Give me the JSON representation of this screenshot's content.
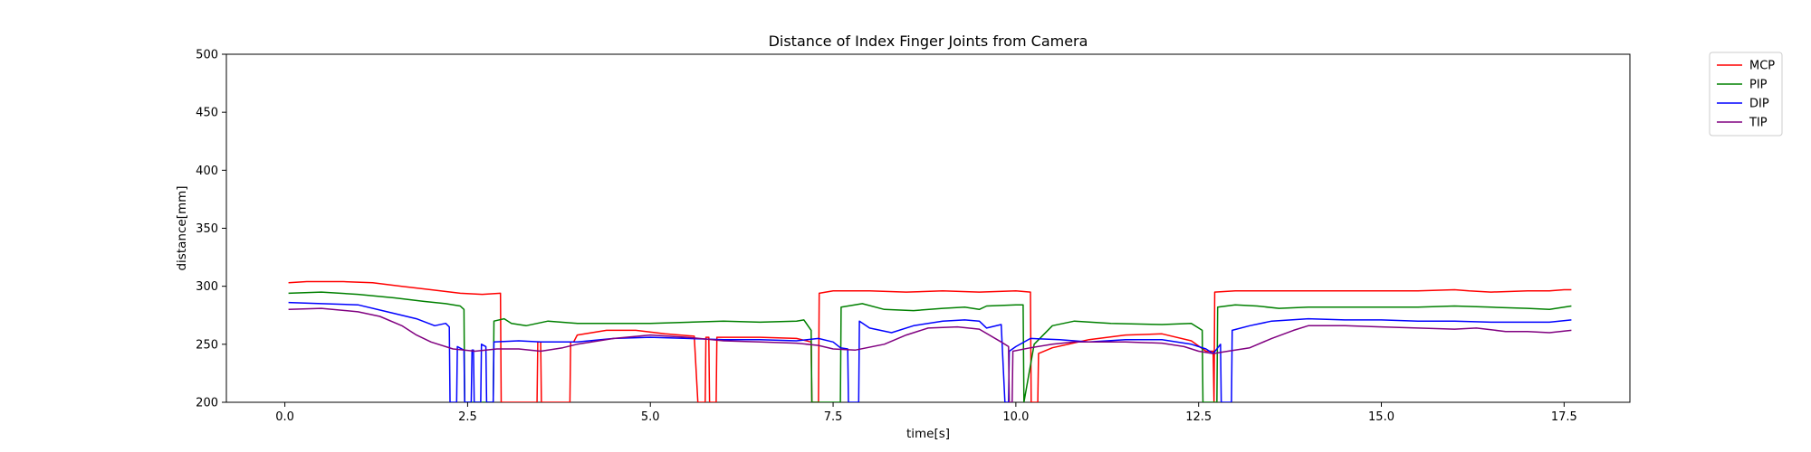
{
  "chart_data": {
    "type": "line",
    "title": "Distance of Index Finger Joints from Camera",
    "xlabel": "time[s]",
    "ylabel": "distance[mm]",
    "xlim": [
      -0.8,
      18.4
    ],
    "ylim": [
      200,
      500
    ],
    "xticks": [
      0.0,
      2.5,
      5.0,
      7.5,
      10.0,
      12.5,
      15.0,
      17.5
    ],
    "xtick_labels": [
      "0.0",
      "2.5",
      "5.0",
      "7.5",
      "10.0",
      "12.5",
      "15.0",
      "17.5"
    ],
    "yticks": [
      200,
      250,
      300,
      350,
      400,
      450,
      500
    ],
    "ytick_labels": [
      "200",
      "250",
      "300",
      "350",
      "400",
      "450",
      "500"
    ],
    "grid": false,
    "legend_position": "outside-top-right",
    "series": [
      {
        "name": "MCP",
        "color": "#ff0000",
        "points": [
          [
            0.05,
            303
          ],
          [
            0.3,
            304
          ],
          [
            0.8,
            304
          ],
          [
            1.2,
            303
          ],
          [
            1.6,
            300
          ],
          [
            2.0,
            297
          ],
          [
            2.4,
            294
          ],
          [
            2.7,
            293
          ],
          [
            2.95,
            294
          ],
          [
            2.96,
            200
          ],
          [
            3.45,
            200
          ],
          [
            3.46,
            252
          ],
          [
            3.5,
            252
          ],
          [
            3.51,
            200
          ],
          [
            3.9,
            200
          ],
          [
            3.91,
            252
          ],
          [
            3.95,
            252
          ],
          [
            4.0,
            258
          ],
          [
            4.4,
            262
          ],
          [
            4.8,
            262
          ],
          [
            5.2,
            259
          ],
          [
            5.6,
            257
          ],
          [
            5.65,
            200
          ],
          [
            5.75,
            200
          ],
          [
            5.76,
            256
          ],
          [
            5.8,
            256
          ],
          [
            5.81,
            200
          ],
          [
            5.9,
            200
          ],
          [
            5.91,
            256
          ],
          [
            6.5,
            256
          ],
          [
            7.0,
            255
          ],
          [
            7.2,
            252
          ],
          [
            7.21,
            200
          ],
          [
            7.3,
            200
          ],
          [
            7.31,
            294
          ],
          [
            7.5,
            296
          ],
          [
            8.0,
            296
          ],
          [
            8.5,
            295
          ],
          [
            9.0,
            296
          ],
          [
            9.5,
            295
          ],
          [
            10.0,
            296
          ],
          [
            10.2,
            295
          ],
          [
            10.21,
            200
          ],
          [
            10.3,
            200
          ],
          [
            10.31,
            242
          ],
          [
            10.5,
            247
          ],
          [
            11.0,
            254
          ],
          [
            11.5,
            258
          ],
          [
            12.0,
            259
          ],
          [
            12.4,
            253
          ],
          [
            12.6,
            244
          ],
          [
            12.7,
            244
          ],
          [
            12.71,
            200
          ],
          [
            12.72,
            295
          ],
          [
            13.0,
            296
          ],
          [
            14.0,
            296
          ],
          [
            15.0,
            296
          ],
          [
            15.5,
            296
          ],
          [
            16.0,
            297
          ],
          [
            16.2,
            296
          ],
          [
            16.5,
            295
          ],
          [
            17.0,
            296
          ],
          [
            17.3,
            296
          ],
          [
            17.5,
            297
          ],
          [
            17.6,
            297
          ]
        ]
      },
      {
        "name": "PIP",
        "color": "#008000",
        "points": [
          [
            0.05,
            294
          ],
          [
            0.5,
            295
          ],
          [
            1.0,
            293
          ],
          [
            1.5,
            290
          ],
          [
            1.9,
            287
          ],
          [
            2.2,
            285
          ],
          [
            2.4,
            283
          ],
          [
            2.45,
            280
          ],
          [
            2.46,
            200
          ],
          [
            2.85,
            200
          ],
          [
            2.86,
            270
          ],
          [
            3.0,
            272
          ],
          [
            3.1,
            268
          ],
          [
            3.3,
            266
          ],
          [
            3.6,
            270
          ],
          [
            4.0,
            268
          ],
          [
            5.0,
            268
          ],
          [
            6.0,
            270
          ],
          [
            6.5,
            269
          ],
          [
            7.0,
            270
          ],
          [
            7.1,
            271
          ],
          [
            7.2,
            262
          ],
          [
            7.21,
            200
          ],
          [
            7.4,
            200
          ],
          [
            7.5,
            200
          ],
          [
            7.51,
            200
          ],
          [
            7.6,
            200
          ],
          [
            7.61,
            282
          ],
          [
            7.9,
            285
          ],
          [
            8.2,
            280
          ],
          [
            8.6,
            279
          ],
          [
            9.0,
            281
          ],
          [
            9.3,
            282
          ],
          [
            9.5,
            280
          ],
          [
            9.6,
            283
          ],
          [
            10.0,
            284
          ],
          [
            10.1,
            284
          ],
          [
            10.11,
            200
          ],
          [
            10.25,
            250
          ],
          [
            10.5,
            266
          ],
          [
            10.8,
            270
          ],
          [
            11.3,
            268
          ],
          [
            12.0,
            267
          ],
          [
            12.4,
            268
          ],
          [
            12.55,
            262
          ],
          [
            12.56,
            200
          ],
          [
            12.75,
            200
          ],
          [
            12.76,
            282
          ],
          [
            13.0,
            284
          ],
          [
            13.3,
            283
          ],
          [
            13.6,
            281
          ],
          [
            14.0,
            282
          ],
          [
            15.0,
            282
          ],
          [
            15.5,
            282
          ],
          [
            16.0,
            283
          ],
          [
            16.5,
            282
          ],
          [
            17.0,
            281
          ],
          [
            17.3,
            280
          ],
          [
            17.6,
            283
          ]
        ]
      },
      {
        "name": "DIP",
        "color": "#0000ff",
        "points": [
          [
            0.05,
            286
          ],
          [
            0.5,
            285
          ],
          [
            1.0,
            284
          ],
          [
            1.4,
            278
          ],
          [
            1.8,
            272
          ],
          [
            2.05,
            266
          ],
          [
            2.2,
            268
          ],
          [
            2.25,
            265
          ],
          [
            2.26,
            200
          ],
          [
            2.35,
            200
          ],
          [
            2.36,
            248
          ],
          [
            2.45,
            245
          ],
          [
            2.46,
            200
          ],
          [
            2.55,
            200
          ],
          [
            2.56,
            245
          ],
          [
            2.58,
            245
          ],
          [
            2.59,
            200
          ],
          [
            2.68,
            200
          ],
          [
            2.69,
            250
          ],
          [
            2.75,
            248
          ],
          [
            2.76,
            200
          ],
          [
            2.85,
            200
          ],
          [
            2.86,
            252
          ],
          [
            3.2,
            253
          ],
          [
            3.5,
            252
          ],
          [
            4.0,
            252
          ],
          [
            4.5,
            255
          ],
          [
            5.0,
            256
          ],
          [
            6.0,
            254
          ],
          [
            6.5,
            254
          ],
          [
            7.0,
            253
          ],
          [
            7.3,
            255
          ],
          [
            7.5,
            252
          ],
          [
            7.6,
            247
          ],
          [
            7.7,
            246
          ],
          [
            7.71,
            200
          ],
          [
            7.85,
            200
          ],
          [
            7.86,
            270
          ],
          [
            8.0,
            264
          ],
          [
            8.3,
            260
          ],
          [
            8.6,
            266
          ],
          [
            9.0,
            270
          ],
          [
            9.3,
            271
          ],
          [
            9.5,
            270
          ],
          [
            9.6,
            264
          ],
          [
            9.8,
            267
          ],
          [
            9.85,
            200
          ],
          [
            9.9,
            200
          ],
          [
            9.91,
            244
          ],
          [
            10.0,
            248
          ],
          [
            10.2,
            255
          ],
          [
            10.6,
            254
          ],
          [
            11.0,
            252
          ],
          [
            11.5,
            254
          ],
          [
            12.0,
            254
          ],
          [
            12.4,
            250
          ],
          [
            12.6,
            246
          ],
          [
            12.7,
            242
          ],
          [
            12.8,
            250
          ],
          [
            12.81,
            200
          ],
          [
            12.95,
            200
          ],
          [
            12.96,
            262
          ],
          [
            13.2,
            266
          ],
          [
            13.5,
            270
          ],
          [
            14.0,
            272
          ],
          [
            14.5,
            271
          ],
          [
            15.0,
            271
          ],
          [
            15.5,
            270
          ],
          [
            16.0,
            270
          ],
          [
            16.5,
            269
          ],
          [
            17.0,
            269
          ],
          [
            17.3,
            269
          ],
          [
            17.6,
            271
          ]
        ]
      },
      {
        "name": "TIP",
        "color": "#800080",
        "points": [
          [
            0.05,
            280
          ],
          [
            0.5,
            281
          ],
          [
            1.0,
            278
          ],
          [
            1.3,
            274
          ],
          [
            1.6,
            266
          ],
          [
            1.8,
            258
          ],
          [
            2.0,
            252
          ],
          [
            2.3,
            246
          ],
          [
            2.6,
            244
          ],
          [
            2.9,
            246
          ],
          [
            3.2,
            246
          ],
          [
            3.5,
            244
          ],
          [
            3.8,
            247
          ],
          [
            4.0,
            250
          ],
          [
            4.5,
            255
          ],
          [
            5.0,
            258
          ],
          [
            5.5,
            256
          ],
          [
            6.0,
            253
          ],
          [
            6.5,
            252
          ],
          [
            7.0,
            251
          ],
          [
            7.3,
            249
          ],
          [
            7.5,
            246
          ],
          [
            7.8,
            245
          ],
          [
            8.2,
            250
          ],
          [
            8.5,
            258
          ],
          [
            8.8,
            264
          ],
          [
            9.2,
            265
          ],
          [
            9.5,
            263
          ],
          [
            9.8,
            252
          ],
          [
            9.9,
            248
          ],
          [
            9.91,
            200
          ],
          [
            9.95,
            200
          ],
          [
            9.96,
            244
          ],
          [
            10.2,
            247
          ],
          [
            10.5,
            250
          ],
          [
            10.8,
            252
          ],
          [
            11.5,
            252
          ],
          [
            12.0,
            251
          ],
          [
            12.3,
            248
          ],
          [
            12.5,
            244
          ],
          [
            12.7,
            242
          ],
          [
            12.9,
            244
          ],
          [
            13.2,
            247
          ],
          [
            13.5,
            255
          ],
          [
            13.8,
            262
          ],
          [
            14.0,
            266
          ],
          [
            14.5,
            266
          ],
          [
            15.0,
            265
          ],
          [
            15.5,
            264
          ],
          [
            16.0,
            263
          ],
          [
            16.3,
            264
          ],
          [
            16.7,
            261
          ],
          [
            17.0,
            261
          ],
          [
            17.3,
            260
          ],
          [
            17.6,
            262
          ]
        ]
      }
    ]
  }
}
